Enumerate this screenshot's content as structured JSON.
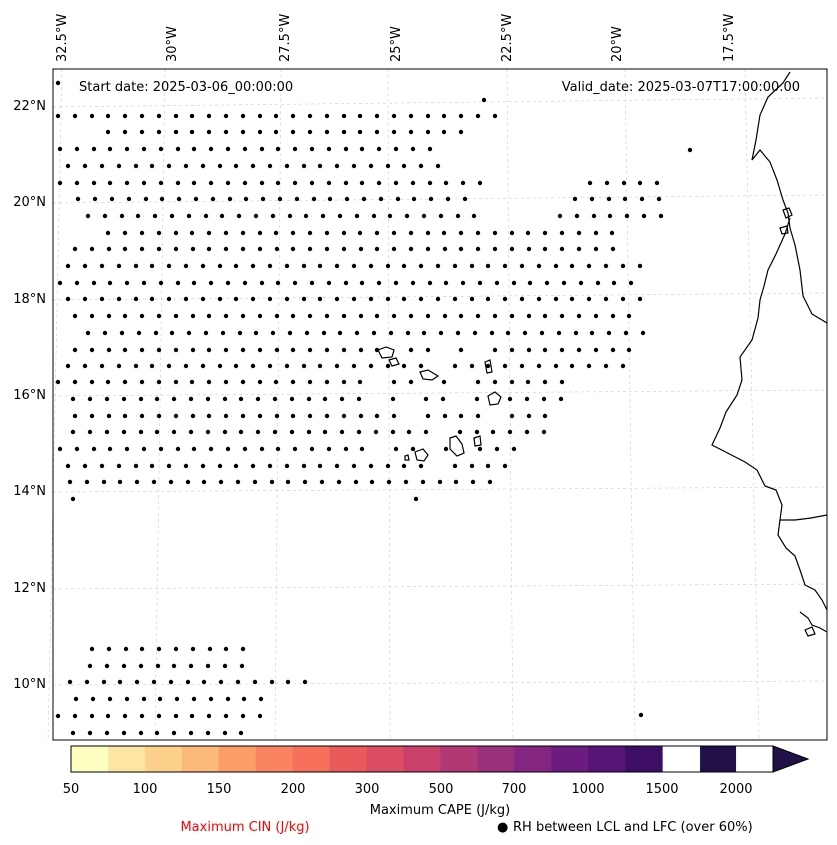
{
  "map": {
    "start_date": "Start date: 2025-03-06_00:00:00",
    "valid_date": "Valid_date: 2025-03-07T17:00:00.00",
    "lon_labels": [
      "32.5°W",
      "30°W",
      "27.5°W",
      "25°W",
      "22.5°W",
      "20°W",
      "17.5°W"
    ],
    "lat_labels": [
      "22°N",
      "20°N",
      "18°N",
      "16°N",
      "14°N",
      "12°N",
      "10°N"
    ]
  },
  "colorbar": {
    "title": "Maximum CAPE (J/kg)",
    "tick_labels": [
      "50",
      "100",
      "150",
      "200",
      "300",
      "500",
      "700",
      "1000",
      "1500",
      "2000"
    ],
    "colors": [
      "#feffc0",
      "#fde5a2",
      "#fdd08b",
      "#fdb979",
      "#fd9e6a",
      "#fb8460",
      "#f6705b",
      "#ea5a5b",
      "#dc4c62",
      "#c9406b",
      "#b13874",
      "#9a2f7c",
      "#832581",
      "#6c1c81",
      "#561479",
      "#3d0e64",
      "#221048"
    ]
  },
  "legend": {
    "cin_label": "Maximum CIN (J/kg)",
    "cin_color": "#ff0000",
    "rh_marker": "●",
    "rh_label": "RH between LCL and LFC (over 60%)"
  }
}
